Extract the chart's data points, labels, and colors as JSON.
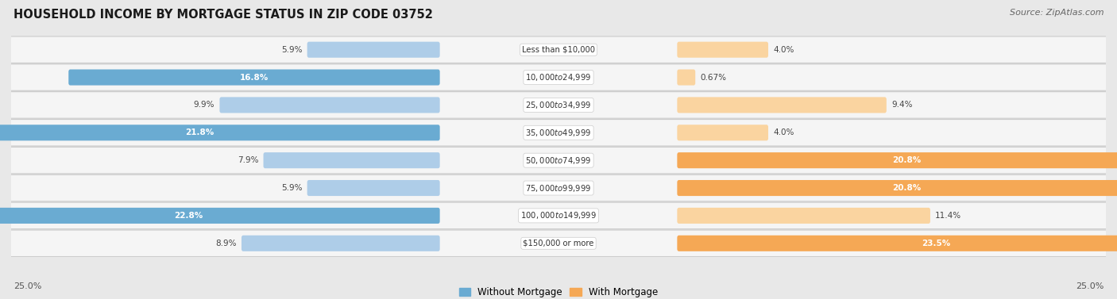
{
  "title": "HOUSEHOLD INCOME BY MORTGAGE STATUS IN ZIP CODE 03752",
  "source": "Source: ZipAtlas.com",
  "categories": [
    "Less than $10,000",
    "$10,000 to $24,999",
    "$25,000 to $34,999",
    "$35,000 to $49,999",
    "$50,000 to $74,999",
    "$75,000 to $99,999",
    "$100,000 to $149,999",
    "$150,000 or more"
  ],
  "without_mortgage": [
    5.9,
    16.8,
    9.9,
    21.8,
    7.9,
    5.9,
    22.8,
    8.9
  ],
  "with_mortgage": [
    4.0,
    0.67,
    9.4,
    4.0,
    20.8,
    20.8,
    11.4,
    23.5
  ],
  "without_mortgage_color": "#6aabd2",
  "without_mortgage_light": "#aecde8",
  "with_mortgage_color": "#f5a855",
  "with_mortgage_light": "#fad4a0",
  "background_color": "#e8e8e8",
  "row_bg_color": "#f5f5f5",
  "axis_label_left": "25.0%",
  "axis_label_right": "25.0%",
  "legend_without": "Without Mortgage",
  "legend_with": "With Mortgage",
  "max_val": 25.0,
  "label_threshold": 12.0
}
